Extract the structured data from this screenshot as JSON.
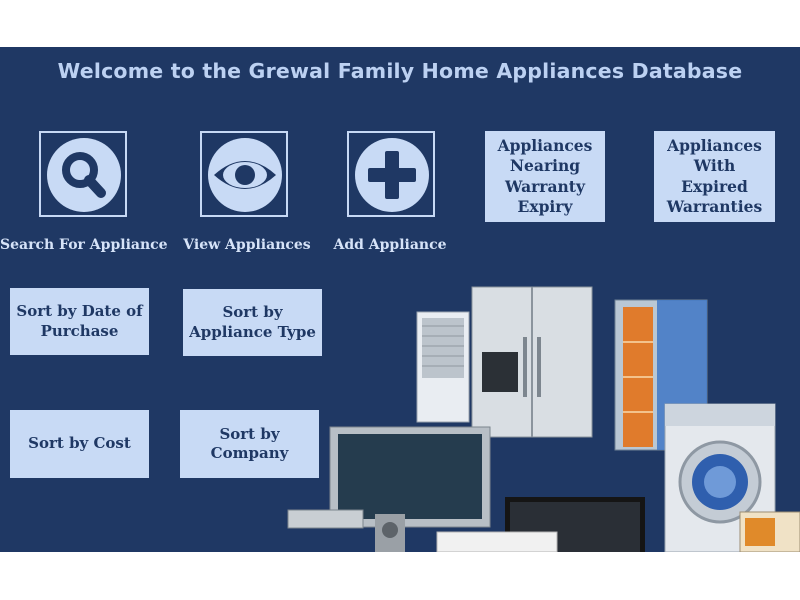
{
  "header": {
    "title": "Welcome to the Grewal Family Home Appliances Database"
  },
  "icon_buttons": [
    {
      "label": "Search For Appliance",
      "icon": "magnifier-icon"
    },
    {
      "label": "View Appliances",
      "icon": "eye-icon"
    },
    {
      "label": "Add Appliance",
      "icon": "plus-icon"
    }
  ],
  "buttons": {
    "nearing_expiry": "Appliances Nearing Warranty Expiry",
    "expired": "Appliances With Expired Warranties",
    "sort_date": "Sort by Date of Purchase",
    "sort_type": "Sort by Appliance Type",
    "sort_cost": "Sort by Cost",
    "sort_company": "Sort by Company"
  },
  "colors": {
    "background": "#1f3864",
    "button": "#c8daf5",
    "icon_outline": "#c7d9f5",
    "title": "#bcd1f2"
  }
}
